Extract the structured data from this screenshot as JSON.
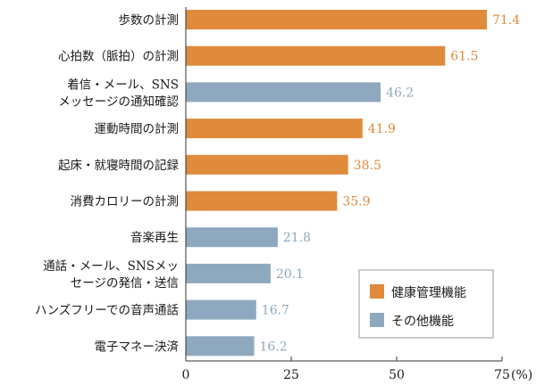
{
  "chart_data": {
    "type": "bar",
    "orientation": "horizontal",
    "categories": [
      [
        "歩数の計測"
      ],
      [
        "心拍数（脈拍）の計測"
      ],
      [
        "着信・メール、SNS",
        "メッセージの通知確認"
      ],
      [
        "運動時間の計測"
      ],
      [
        "起床・就寝時間の記録"
      ],
      [
        "消費カロリーの計測"
      ],
      [
        "音楽再生"
      ],
      [
        "通話・メール、SNSメッ",
        "セージの発信・送信"
      ],
      [
        "ハンズフリーでの音声通話"
      ],
      [
        "電子マネー決済"
      ]
    ],
    "values": [
      71.4,
      61.5,
      46.2,
      41.9,
      38.5,
      35.9,
      21.8,
      20.1,
      16.7,
      16.2
    ],
    "groups": [
      "health",
      "health",
      "other",
      "health",
      "health",
      "health",
      "other",
      "other",
      "other",
      "other"
    ],
    "value_labels": [
      "71.4",
      "61.5",
      "46.2",
      "41.9",
      "38.5",
      "35.9",
      "21.8",
      "20.1",
      "16.7",
      "16.2"
    ],
    "series": [
      {
        "key": "health",
        "name": "健康管理機能",
        "color": "#e08a3c"
      },
      {
        "key": "other",
        "name": "その他機能",
        "color": "#8ea9bf"
      }
    ],
    "xticks": [
      {
        "value": 0,
        "label": "0"
      },
      {
        "value": 25,
        "label": "25"
      },
      {
        "value": 50,
        "label": "50"
      },
      {
        "value": 75,
        "label": "75"
      }
    ],
    "xunit": "(%)",
    "xlim": [
      0,
      82
    ],
    "legend": "bottom-right",
    "grid": false
  }
}
